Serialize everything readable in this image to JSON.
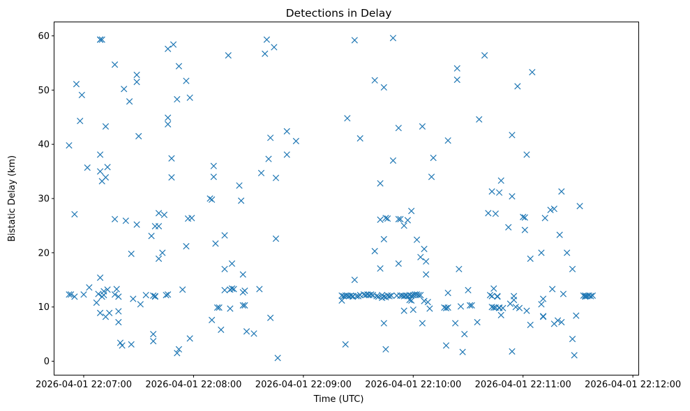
{
  "chart_data": {
    "type": "scatter",
    "title": "Detections in Delay",
    "xlabel": "Time (UTC)",
    "ylabel": "Bistatic Delay (km)",
    "marker": "x",
    "color": "#1f77b4",
    "xlim": [
      "2026-04-01 22:06:44",
      "2026-04-01 22:12:03"
    ],
    "ylim": [
      -2.5,
      62.5
    ],
    "x_ticks": [
      "2026-04-01 22:07:00",
      "2026-04-01 22:08:00",
      "2026-04-01 22:09:00",
      "2026-04-01 22:10:00",
      "2026-04-01 22:11:00",
      "2026-04-01 22:12:00"
    ],
    "y_ticks": [
      0,
      10,
      20,
      30,
      40,
      50,
      60
    ],
    "grid": false,
    "points": [
      [
        "2026-04-01 22:06:52",
        39.8
      ],
      [
        "2026-04-01 22:06:52",
        12.3
      ],
      [
        "2026-04-01 22:06:53",
        12.3
      ],
      [
        "2026-04-01 22:06:55",
        27.1
      ],
      [
        "2026-04-01 22:06:55",
        11.9
      ],
      [
        "2026-04-01 22:06:56",
        51.1
      ],
      [
        "2026-04-01 22:06:58",
        44.3
      ],
      [
        "2026-04-01 22:06:59",
        49.1
      ],
      [
        "2026-04-01 22:07:00",
        12.3
      ],
      [
        "2026-04-01 22:07:02",
        35.7
      ],
      [
        "2026-04-01 22:07:03",
        13.6
      ],
      [
        "2026-04-01 22:07:07",
        10.8
      ],
      [
        "2026-04-01 22:07:08",
        12.4
      ],
      [
        "2026-04-01 22:07:09",
        59.3
      ],
      [
        "2026-04-01 22:07:09",
        59.3
      ],
      [
        "2026-04-01 22:07:09",
        8.9
      ],
      [
        "2026-04-01 22:07:09",
        15.4
      ],
      [
        "2026-04-01 22:07:09",
        38.1
      ],
      [
        "2026-04-01 22:07:09",
        35.0
      ],
      [
        "2026-04-01 22:07:10",
        33.2
      ],
      [
        "2026-04-01 22:07:10",
        11.9
      ],
      [
        "2026-04-01 22:07:10",
        59.3
      ],
      [
        "2026-04-01 22:07:11",
        12.9
      ],
      [
        "2026-04-01 22:07:11",
        12.2
      ],
      [
        "2026-04-01 22:07:12",
        33.9
      ],
      [
        "2026-04-01 22:07:12",
        43.3
      ],
      [
        "2026-04-01 22:07:12",
        8.2
      ],
      [
        "2026-04-01 22:07:13",
        35.8
      ],
      [
        "2026-04-01 22:07:13",
        13.2
      ],
      [
        "2026-04-01 22:07:14",
        8.9
      ],
      [
        "2026-04-01 22:07:17",
        54.7
      ],
      [
        "2026-04-01 22:07:17",
        26.2
      ],
      [
        "2026-04-01 22:07:17",
        12.3
      ],
      [
        "2026-04-01 22:07:18",
        13.3
      ],
      [
        "2026-04-01 22:07:19",
        11.9
      ],
      [
        "2026-04-01 22:07:19",
        9.2
      ],
      [
        "2026-04-01 22:07:19",
        7.2
      ],
      [
        "2026-04-01 22:07:20",
        3.4
      ],
      [
        "2026-04-01 22:07:21",
        2.9
      ],
      [
        "2026-04-01 22:07:22",
        50.2
      ],
      [
        "2026-04-01 22:07:23",
        25.9
      ],
      [
        "2026-04-01 22:07:25",
        47.9
      ],
      [
        "2026-04-01 22:07:26",
        19.8
      ],
      [
        "2026-04-01 22:07:26",
        3.1
      ],
      [
        "2026-04-01 22:07:27",
        11.5
      ],
      [
        "2026-04-01 22:07:29",
        52.8
      ],
      [
        "2026-04-01 22:07:29",
        51.5
      ],
      [
        "2026-04-01 22:07:29",
        25.2
      ],
      [
        "2026-04-01 22:07:30",
        41.5
      ],
      [
        "2026-04-01 22:07:31",
        10.5
      ],
      [
        "2026-04-01 22:07:34",
        12.2
      ],
      [
        "2026-04-01 22:07:37",
        23.1
      ],
      [
        "2026-04-01 22:07:38",
        12.1
      ],
      [
        "2026-04-01 22:07:38",
        5.0
      ],
      [
        "2026-04-01 22:07:38",
        3.7
      ],
      [
        "2026-04-01 22:07:39",
        12.0
      ],
      [
        "2026-04-01 22:07:39",
        24.9
      ],
      [
        "2026-04-01 22:07:39",
        11.9
      ],
      [
        "2026-04-01 22:07:41",
        24.9
      ],
      [
        "2026-04-01 22:07:41",
        27.3
      ],
      [
        "2026-04-01 22:07:41",
        18.9
      ],
      [
        "2026-04-01 22:07:43",
        20.0
      ],
      [
        "2026-04-01 22:07:44",
        27.0
      ],
      [
        "2026-04-01 22:07:45",
        12.2
      ],
      [
        "2026-04-01 22:07:46",
        12.3
      ],
      [
        "2026-04-01 22:07:46",
        57.6
      ],
      [
        "2026-04-01 22:07:46",
        44.9
      ],
      [
        "2026-04-01 22:07:46",
        43.7
      ],
      [
        "2026-04-01 22:07:48",
        37.4
      ],
      [
        "2026-04-01 22:07:48",
        33.9
      ],
      [
        "2026-04-01 22:07:49",
        58.4
      ],
      [
        "2026-04-01 22:07:51",
        48.3
      ],
      [
        "2026-04-01 22:07:51",
        1.5
      ],
      [
        "2026-04-01 22:07:52",
        2.2
      ],
      [
        "2026-04-01 22:07:52",
        54.4
      ],
      [
        "2026-04-01 22:07:54",
        13.2
      ],
      [
        "2026-04-01 22:07:56",
        21.2
      ],
      [
        "2026-04-01 22:07:56",
        51.7
      ],
      [
        "2026-04-01 22:07:57",
        26.3
      ],
      [
        "2026-04-01 22:07:58",
        48.6
      ],
      [
        "2026-04-01 22:07:58",
        4.2
      ],
      [
        "2026-04-01 22:07:59",
        26.4
      ],
      [
        "2026-04-01 22:08:09",
        30.0
      ],
      [
        "2026-04-01 22:08:10",
        7.6
      ],
      [
        "2026-04-01 22:08:10",
        29.8
      ],
      [
        "2026-04-01 22:08:11",
        34.0
      ],
      [
        "2026-04-01 22:08:11",
        36.0
      ],
      [
        "2026-04-01 22:08:12",
        21.7
      ],
      [
        "2026-04-01 22:08:13",
        9.9
      ],
      [
        "2026-04-01 22:08:14",
        9.9
      ],
      [
        "2026-04-01 22:08:15",
        5.8
      ],
      [
        "2026-04-01 22:08:17",
        13.1
      ],
      [
        "2026-04-01 22:08:17",
        17.0
      ],
      [
        "2026-04-01 22:08:17",
        23.2
      ],
      [
        "2026-04-01 22:08:19",
        56.4
      ],
      [
        "2026-04-01 22:08:20",
        9.7
      ],
      [
        "2026-04-01 22:08:20",
        13.2
      ],
      [
        "2026-04-01 22:08:21",
        18.0
      ],
      [
        "2026-04-01 22:08:21",
        13.4
      ],
      [
        "2026-04-01 22:08:22",
        13.3
      ],
      [
        "2026-04-01 22:08:25",
        32.4
      ],
      [
        "2026-04-01 22:08:26",
        29.6
      ],
      [
        "2026-04-01 22:08:27",
        12.7
      ],
      [
        "2026-04-01 22:08:27",
        16.0
      ],
      [
        "2026-04-01 22:08:27",
        10.3
      ],
      [
        "2026-04-01 22:08:28",
        10.3
      ],
      [
        "2026-04-01 22:08:28",
        13.0
      ],
      [
        "2026-04-01 22:08:29",
        5.5
      ],
      [
        "2026-04-01 22:08:33",
        5.1
      ],
      [
        "2026-04-01 22:08:36",
        13.3
      ],
      [
        "2026-04-01 22:08:37",
        34.7
      ],
      [
        "2026-04-01 22:08:39",
        56.7
      ],
      [
        "2026-04-01 22:08:40",
        59.3
      ],
      [
        "2026-04-01 22:08:41",
        37.3
      ],
      [
        "2026-04-01 22:08:42",
        41.2
      ],
      [
        "2026-04-01 22:08:42",
        8.0
      ],
      [
        "2026-04-01 22:08:44",
        57.9
      ],
      [
        "2026-04-01 22:08:45",
        33.8
      ],
      [
        "2026-04-01 22:08:45",
        22.6
      ],
      [
        "2026-04-01 22:08:46",
        0.6
      ],
      [
        "2026-04-01 22:08:51",
        38.1
      ],
      [
        "2026-04-01 22:08:51",
        42.4
      ],
      [
        "2026-04-01 22:08:56",
        40.6
      ],
      [
        "2026-04-01 22:09:21",
        11.2
      ],
      [
        "2026-04-01 22:09:21",
        12.1
      ],
      [
        "2026-04-01 22:09:22",
        12.0
      ],
      [
        "2026-04-01 22:09:23",
        3.1
      ],
      [
        "2026-04-01 22:09:23",
        12.1
      ],
      [
        "2026-04-01 22:09:24",
        44.8
      ],
      [
        "2026-04-01 22:09:24",
        12.1
      ],
      [
        "2026-04-01 22:09:25",
        12.0
      ],
      [
        "2026-04-01 22:09:26",
        12.1
      ],
      [
        "2026-04-01 22:09:27",
        12.0
      ],
      [
        "2026-04-01 22:09:27",
        11.9
      ],
      [
        "2026-04-01 22:09:28",
        15.0
      ],
      [
        "2026-04-01 22:09:28",
        59.2
      ],
      [
        "2026-04-01 22:09:29",
        12.0
      ],
      [
        "2026-04-01 22:09:30",
        12.0
      ],
      [
        "2026-04-01 22:09:31",
        41.1
      ],
      [
        "2026-04-01 22:09:31",
        12.2
      ],
      [
        "2026-04-01 22:09:33",
        12.3
      ],
      [
        "2026-04-01 22:09:34",
        12.2
      ],
      [
        "2026-04-01 22:09:35",
        12.3
      ],
      [
        "2026-04-01 22:09:36",
        12.2
      ],
      [
        "2026-04-01 22:09:37",
        12.3
      ],
      [
        "2026-04-01 22:09:38",
        12.2
      ],
      [
        "2026-04-01 22:09:39",
        51.8
      ],
      [
        "2026-04-01 22:09:39",
        20.3
      ],
      [
        "2026-04-01 22:09:40",
        12.0
      ],
      [
        "2026-04-01 22:09:41",
        11.9
      ],
      [
        "2026-04-01 22:09:42",
        32.8
      ],
      [
        "2026-04-01 22:09:42",
        17.1
      ],
      [
        "2026-04-01 22:09:42",
        26.1
      ],
      [
        "2026-04-01 22:09:43",
        11.7
      ],
      [
        "2026-04-01 22:09:43",
        12.2
      ],
      [
        "2026-04-01 22:09:44",
        7.0
      ],
      [
        "2026-04-01 22:09:44",
        11.9
      ],
      [
        "2026-04-01 22:09:44",
        50.5
      ],
      [
        "2026-04-01 22:09:44",
        22.5
      ],
      [
        "2026-04-01 22:09:45",
        26.4
      ],
      [
        "2026-04-01 22:09:45",
        2.2
      ],
      [
        "2026-04-01 22:09:45",
        11.8
      ],
      [
        "2026-04-01 22:09:46",
        12.1
      ],
      [
        "2026-04-01 22:09:46",
        26.3
      ],
      [
        "2026-04-01 22:09:47",
        12.0
      ],
      [
        "2026-04-01 22:09:48",
        12.1
      ],
      [
        "2026-04-01 22:09:49",
        59.6
      ],
      [
        "2026-04-01 22:09:49",
        37.0
      ],
      [
        "2026-04-01 22:09:51",
        12.1
      ],
      [
        "2026-04-01 22:09:52",
        43.0
      ],
      [
        "2026-04-01 22:09:52",
        18.0
      ],
      [
        "2026-04-01 22:09:52",
        26.2
      ],
      [
        "2026-04-01 22:09:53",
        26.2
      ],
      [
        "2026-04-01 22:09:53",
        12.1
      ],
      [
        "2026-04-01 22:09:54",
        12.1
      ],
      [
        "2026-04-01 22:09:55",
        12.0
      ],
      [
        "2026-04-01 22:09:55",
        9.3
      ],
      [
        "2026-04-01 22:09:55",
        25.0
      ],
      [
        "2026-04-01 22:09:56",
        12.1
      ],
      [
        "2026-04-01 22:09:57",
        12.0
      ],
      [
        "2026-04-01 22:09:57",
        26.0
      ],
      [
        "2026-04-01 22:09:58",
        12.2
      ],
      [
        "2026-04-01 22:09:58",
        11.3
      ],
      [
        "2026-04-01 22:09:59",
        12.1
      ],
      [
        "2026-04-01 22:09:59",
        11.2
      ],
      [
        "2026-04-01 22:09:59",
        27.7
      ],
      [
        "2026-04-01 22:10:00",
        9.5
      ],
      [
        "2026-04-01 22:10:00",
        12.2
      ],
      [
        "2026-04-01 22:10:01",
        12.3
      ],
      [
        "2026-04-01 22:10:02",
        22.4
      ],
      [
        "2026-04-01 22:10:02",
        12.3
      ],
      [
        "2026-04-01 22:10:03",
        12.2
      ],
      [
        "2026-04-01 22:10:04",
        12.2
      ],
      [
        "2026-04-01 22:10:04",
        19.2
      ],
      [
        "2026-04-01 22:10:05",
        7.0
      ],
      [
        "2026-04-01 22:10:05",
        43.3
      ],
      [
        "2026-04-01 22:10:06",
        20.7
      ],
      [
        "2026-04-01 22:10:06",
        11.1
      ],
      [
        "2026-04-01 22:10:07",
        16.0
      ],
      [
        "2026-04-01 22:10:07",
        18.4
      ],
      [
        "2026-04-01 22:10:08",
        10.9
      ],
      [
        "2026-04-01 22:10:09",
        9.7
      ],
      [
        "2026-04-01 22:10:10",
        34.0
      ],
      [
        "2026-04-01 22:10:11",
        37.5
      ],
      [
        "2026-04-01 22:10:17",
        9.9
      ],
      [
        "2026-04-01 22:10:18",
        2.9
      ],
      [
        "2026-04-01 22:10:18",
        9.8
      ],
      [
        "2026-04-01 22:10:19",
        12.6
      ],
      [
        "2026-04-01 22:10:19",
        9.9
      ],
      [
        "2026-04-01 22:10:19",
        40.7
      ],
      [
        "2026-04-01 22:10:23",
        7.0
      ],
      [
        "2026-04-01 22:10:24",
        54.0
      ],
      [
        "2026-04-01 22:10:24",
        51.9
      ],
      [
        "2026-04-01 22:10:25",
        17.0
      ],
      [
        "2026-04-01 22:10:26",
        10.1
      ],
      [
        "2026-04-01 22:10:27",
        1.7
      ],
      [
        "2026-04-01 22:10:28",
        5.0
      ],
      [
        "2026-04-01 22:10:30",
        13.1
      ],
      [
        "2026-04-01 22:10:31",
        10.3
      ],
      [
        "2026-04-01 22:10:32",
        10.3
      ],
      [
        "2026-04-01 22:10:35",
        7.2
      ],
      [
        "2026-04-01 22:10:36",
        44.6
      ],
      [
        "2026-04-01 22:10:39",
        56.4
      ],
      [
        "2026-04-01 22:10:41",
        27.3
      ],
      [
        "2026-04-01 22:10:42",
        12.2
      ],
      [
        "2026-04-01 22:10:43",
        10.0
      ],
      [
        "2026-04-01 22:10:43",
        31.3
      ],
      [
        "2026-04-01 22:10:43",
        12.0
      ],
      [
        "2026-04-01 22:10:44",
        13.4
      ],
      [
        "2026-04-01 22:10:44",
        9.9
      ],
      [
        "2026-04-01 22:10:45",
        27.2
      ],
      [
        "2026-04-01 22:10:45",
        9.9
      ],
      [
        "2026-04-01 22:10:46",
        11.9
      ],
      [
        "2026-04-01 22:10:46",
        12.0
      ],
      [
        "2026-04-01 22:10:47",
        9.8
      ],
      [
        "2026-04-01 22:10:47",
        31.1
      ],
      [
        "2026-04-01 22:10:47",
        9.9
      ],
      [
        "2026-04-01 22:10:48",
        8.5
      ],
      [
        "2026-04-01 22:10:48",
        33.3
      ],
      [
        "2026-04-01 22:10:49",
        9.8
      ],
      [
        "2026-04-01 22:10:52",
        24.7
      ],
      [
        "2026-04-01 22:10:53",
        10.6
      ],
      [
        "2026-04-01 22:10:54",
        41.7
      ],
      [
        "2026-04-01 22:10:54",
        30.4
      ],
      [
        "2026-04-01 22:10:54",
        1.8
      ],
      [
        "2026-04-01 22:10:55",
        11.3
      ],
      [
        "2026-04-01 22:10:55",
        12.0
      ],
      [
        "2026-04-01 22:10:56",
        10.0
      ],
      [
        "2026-04-01 22:10:57",
        50.7
      ],
      [
        "2026-04-01 22:10:58",
        9.8
      ],
      [
        "2026-04-01 22:11:00",
        26.6
      ],
      [
        "2026-04-01 22:11:01",
        26.5
      ],
      [
        "2026-04-01 22:11:01",
        24.2
      ],
      [
        "2026-04-01 22:11:02",
        38.1
      ],
      [
        "2026-04-01 22:11:02",
        9.3
      ],
      [
        "2026-04-01 22:11:04",
        6.7
      ],
      [
        "2026-04-01 22:11:04",
        18.9
      ],
      [
        "2026-04-01 22:11:05",
        53.3
      ],
      [
        "2026-04-01 22:11:10",
        20.0
      ],
      [
        "2026-04-01 22:11:10",
        10.5
      ],
      [
        "2026-04-01 22:11:11",
        8.2
      ],
      [
        "2026-04-01 22:11:11",
        8.3
      ],
      [
        "2026-04-01 22:11:11",
        11.5
      ],
      [
        "2026-04-01 22:11:12",
        26.4
      ],
      [
        "2026-04-01 22:11:15",
        27.9
      ],
      [
        "2026-04-01 22:11:16",
        13.3
      ],
      [
        "2026-04-01 22:11:17",
        6.9
      ],
      [
        "2026-04-01 22:11:17",
        28.1
      ],
      [
        "2026-04-01 22:11:19",
        7.5
      ],
      [
        "2026-04-01 22:11:20",
        23.3
      ],
      [
        "2026-04-01 22:11:21",
        31.3
      ],
      [
        "2026-04-01 22:11:21",
        7.2
      ],
      [
        "2026-04-01 22:11:22",
        12.4
      ],
      [
        "2026-04-01 22:11:24",
        20.0
      ],
      [
        "2026-04-01 22:11:27",
        4.1
      ],
      [
        "2026-04-01 22:11:27",
        17.0
      ],
      [
        "2026-04-01 22:11:28",
        1.1
      ],
      [
        "2026-04-01 22:11:29",
        8.4
      ],
      [
        "2026-04-01 22:11:31",
        28.6
      ],
      [
        "2026-04-01 22:11:33",
        12.1
      ],
      [
        "2026-04-01 22:11:34",
        11.9
      ],
      [
        "2026-04-01 22:11:34",
        12.1
      ],
      [
        "2026-04-01 22:11:35",
        12.0
      ],
      [
        "2026-04-01 22:11:36",
        12.1
      ],
      [
        "2026-04-01 22:11:37",
        12.0
      ],
      [
        "2026-04-01 22:11:38",
        12.1
      ]
    ]
  }
}
